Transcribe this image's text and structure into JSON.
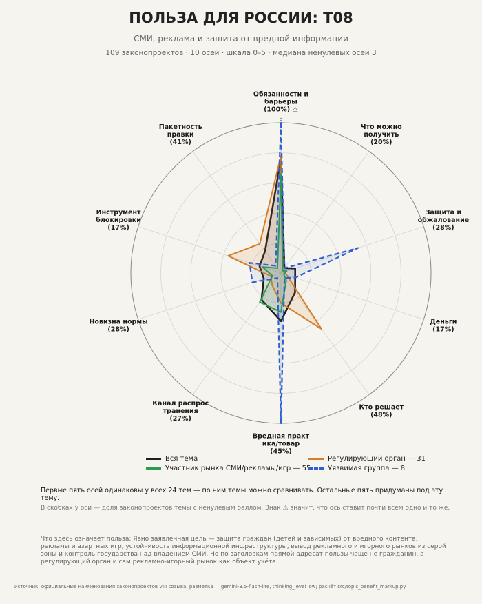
{
  "header": {
    "title": "ПОЛЬЗА ДЛЯ РОССИИ: T08",
    "subtitle": "СМИ, реклама и защита от вредной информации",
    "stats": "109 законопроектов · 10 осей · шкала 0–5 · медиана ненулевых осей 3"
  },
  "chart_data": {
    "type": "radar",
    "scale_max": 5,
    "rings": [
      1,
      2,
      3,
      4,
      5
    ],
    "tick_label": "5",
    "axes": [
      {
        "lines": [
          "Обязанности и",
          "барьеры",
          "(100%)  ⚠"
        ]
      },
      {
        "lines": [
          "Что можно",
          "получить",
          "(20%)"
        ]
      },
      {
        "lines": [
          "Защита и",
          "обжалование",
          "(28%)"
        ]
      },
      {
        "lines": [
          "Деньги",
          "(17%)"
        ]
      },
      {
        "lines": [
          "Кто решает",
          "(48%)"
        ]
      },
      {
        "lines": [
          "Вредная практ",
          "ика/товар",
          "(45%)"
        ]
      },
      {
        "lines": [
          "Канал распрос",
          "транения",
          "(27%)"
        ]
      },
      {
        "lines": [
          "Новизна нормы",
          "(28%)"
        ]
      },
      {
        "lines": [
          "Инструмент",
          "блокировки",
          "(17%)"
        ]
      },
      {
        "lines": [
          "Пакетность",
          "правки",
          "(41%)"
        ]
      }
    ],
    "series": [
      {
        "name": "Вся тема",
        "color": "#1e1e1e",
        "dash": "",
        "fill_opacity": 0.12,
        "width": 2.6,
        "values": [
          3.8,
          0.2,
          0.5,
          0.5,
          0.8,
          1.6,
          1.1,
          0.6,
          0.75,
          0.9
        ]
      },
      {
        "name": "Регулирующий орган — 31",
        "color": "#d57e2a",
        "dash": "",
        "fill_opacity": 0.12,
        "width": 2,
        "values": [
          3.9,
          0.1,
          0.1,
          0.2,
          2.3,
          1.0,
          0.5,
          0.35,
          1.85,
          1.2
        ]
      },
      {
        "name": "Участник рынка СМИ/рекламы/игр — 55",
        "color": "#2e9a52",
        "dash": "",
        "fill_opacity": 0.12,
        "width": 2,
        "values": [
          3.3,
          0.1,
          0.2,
          0.1,
          0.3,
          1.3,
          1.2,
          0.3,
          0.65,
          0.2
        ]
      },
      {
        "name": "Уязвимая группа — 8",
        "color": "#2f60d0",
        "dash": "7,4",
        "fill_opacity": 0.08,
        "width": 2.2,
        "values": [
          5.0,
          0.2,
          2.7,
          0.5,
          0.2,
          5.0,
          0.2,
          1.0,
          1.1,
          0.3
        ]
      }
    ]
  },
  "legend": [
    {
      "label": "Вся тема",
      "color": "#1e1e1e",
      "style": "solid"
    },
    {
      "label": "Регулирующий орган — 31",
      "color": "#d57e2a",
      "style": "solid"
    },
    {
      "label": "Участник рынка СМИ/рекламы/игр — 55",
      "color": "#2e9a52",
      "style": "solid"
    },
    {
      "label": "Уязвимая группа — 8",
      "color": "#2f60d0",
      "style": "dashed"
    }
  ],
  "notes": {
    "comparability": "Первые пять осей одинаковы у всех 24 тем — по ним темы можно сравнивать. Остальные пять придуманы под эту тему.",
    "brackets": "В скобках у оси — доля законопроектов темы с ненулевым баллом. Знак ⚠ значит, что ось ставит почти всем одно и то же.",
    "benefit": "Что здесь означает польза: Явно заявленная цель — защита граждан (детей и зависимых) от вредного контента, рекламы и азартных игр, устойчивость информационной инфраструктуры, вывод рекламного и игорного рынков из серой зоны и контроль государства над владением СМИ. Но по заголовкам прямой адресат пользы чаще не гражданин, а регулирующий орган и сам рекламно-игорный рынок как объект учёта.",
    "source": "источник: официальные наименования законопроектов VIII созыва; разметка — gemini-3.5-flash-lite, thinking_level low; расчёт src/topic_benefit_markup.py"
  }
}
